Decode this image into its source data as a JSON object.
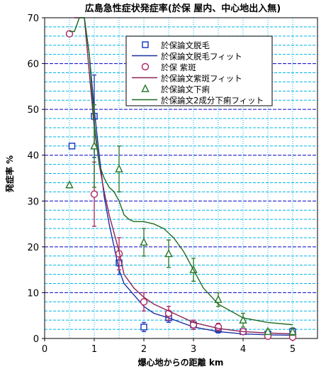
{
  "chart_data": {
    "type": "scatter",
    "title": "広島急性症状発症率(於保 屋内、中心地出入無)",
    "xlabel": "爆心地からの距離 km",
    "ylabel": "発症率 %",
    "xlim": [
      0,
      5.5
    ],
    "ylim": [
      0,
      70
    ],
    "xticks": [
      0,
      1,
      2,
      3,
      4,
      5
    ],
    "yticks": [
      0,
      10,
      20,
      30,
      40,
      50,
      60,
      70
    ],
    "grid": true,
    "legend_position": "top-right",
    "series": [
      {
        "name": "於保論文脱毛",
        "marker": "square",
        "color": "#1f3fbf",
        "x": [
          0.55,
          1.0,
          1.5,
          2.0,
          2.5,
          3.0,
          3.5,
          4.0,
          4.5,
          5.0
        ],
        "y": [
          42.0,
          48.5,
          16.5,
          2.5,
          4.5,
          3.0,
          2.0,
          1.5,
          1.0,
          1.5
        ],
        "err": [
          0,
          9,
          2.5,
          1.0,
          1.0,
          1.0,
          0.8,
          0.5,
          0.5,
          0.8
        ]
      },
      {
        "name": "於保論文脱毛フィット",
        "marker": "line",
        "color": "#1f2fa0",
        "x": [
          0.6,
          0.7,
          0.8,
          0.9,
          1.0,
          1.1,
          1.2,
          1.3,
          1.4,
          1.5,
          1.6,
          1.8,
          2.0,
          2.2,
          2.5,
          3.0,
          3.5,
          4.0,
          4.5,
          5.0
        ],
        "y": [
          70,
          70,
          70,
          62,
          50,
          40,
          31,
          25,
          20,
          15,
          12,
          9.5,
          7,
          5.5,
          4.5,
          2.5,
          1.5,
          1.0,
          0.8,
          0.7
        ]
      },
      {
        "name": "於保 紫斑",
        "marker": "circle",
        "color": "#b0306a",
        "x": [
          0.5,
          1.0,
          1.5,
          2.0,
          2.5,
          3.0,
          3.5,
          4.0,
          4.5,
          5.0
        ],
        "y": [
          66.5,
          31.5,
          18.5,
          8.0,
          5.5,
          3.0,
          2.5,
          1.5,
          0.5,
          0.3
        ],
        "err": [
          0,
          7,
          3.5,
          2.0,
          1.5,
          1.0,
          0.8,
          0.5,
          0.3,
          0.2
        ]
      },
      {
        "name": "於保論文紫斑フィット",
        "marker": "line",
        "color": "#8a2458",
        "x": [
          0.6,
          0.7,
          0.8,
          0.9,
          1.0,
          1.1,
          1.2,
          1.3,
          1.4,
          1.5,
          1.6,
          1.8,
          2.0,
          2.2,
          2.5,
          3.0,
          3.5,
          4.0,
          4.5,
          5.0
        ],
        "y": [
          70,
          70,
          70,
          58,
          46,
          38,
          32,
          27,
          23,
          19,
          14,
          11,
          9,
          7.5,
          6,
          3.5,
          2.2,
          1.5,
          1.2,
          1.0
        ]
      },
      {
        "name": "於保論文下痢",
        "marker": "triangle",
        "color": "#2e7d32",
        "x": [
          0.5,
          1.0,
          1.5,
          2.0,
          2.5,
          3.0,
          3.5,
          4.0,
          4.5,
          5.0
        ],
        "y": [
          33.5,
          42.0,
          37.0,
          21.0,
          18.5,
          15.0,
          8.5,
          4.0,
          1.5,
          1.5
        ],
        "err": [
          0,
          9,
          5,
          3.0,
          3.0,
          2.5,
          1.5,
          1.5,
          0.5,
          0.8
        ]
      },
      {
        "name": "於保論文2成分下痢フィット",
        "marker": "line",
        "color": "#1e6b1e",
        "x": [
          0.5,
          0.6,
          0.7,
          0.8,
          0.9,
          1.0,
          1.1,
          1.2,
          1.3,
          1.4,
          1.5,
          1.6,
          1.7,
          1.8,
          2.0,
          2.2,
          2.4,
          2.6,
          2.8,
          3.0,
          3.2,
          3.5,
          4.0,
          4.5,
          5.0
        ],
        "y": [
          67,
          67,
          70,
          70,
          62,
          47,
          38,
          35,
          33,
          32,
          30,
          27,
          26,
          25.5,
          25.5,
          25,
          24,
          22,
          19,
          15,
          11,
          7.5,
          4.5,
          3.5,
          3.0
        ]
      }
    ]
  }
}
